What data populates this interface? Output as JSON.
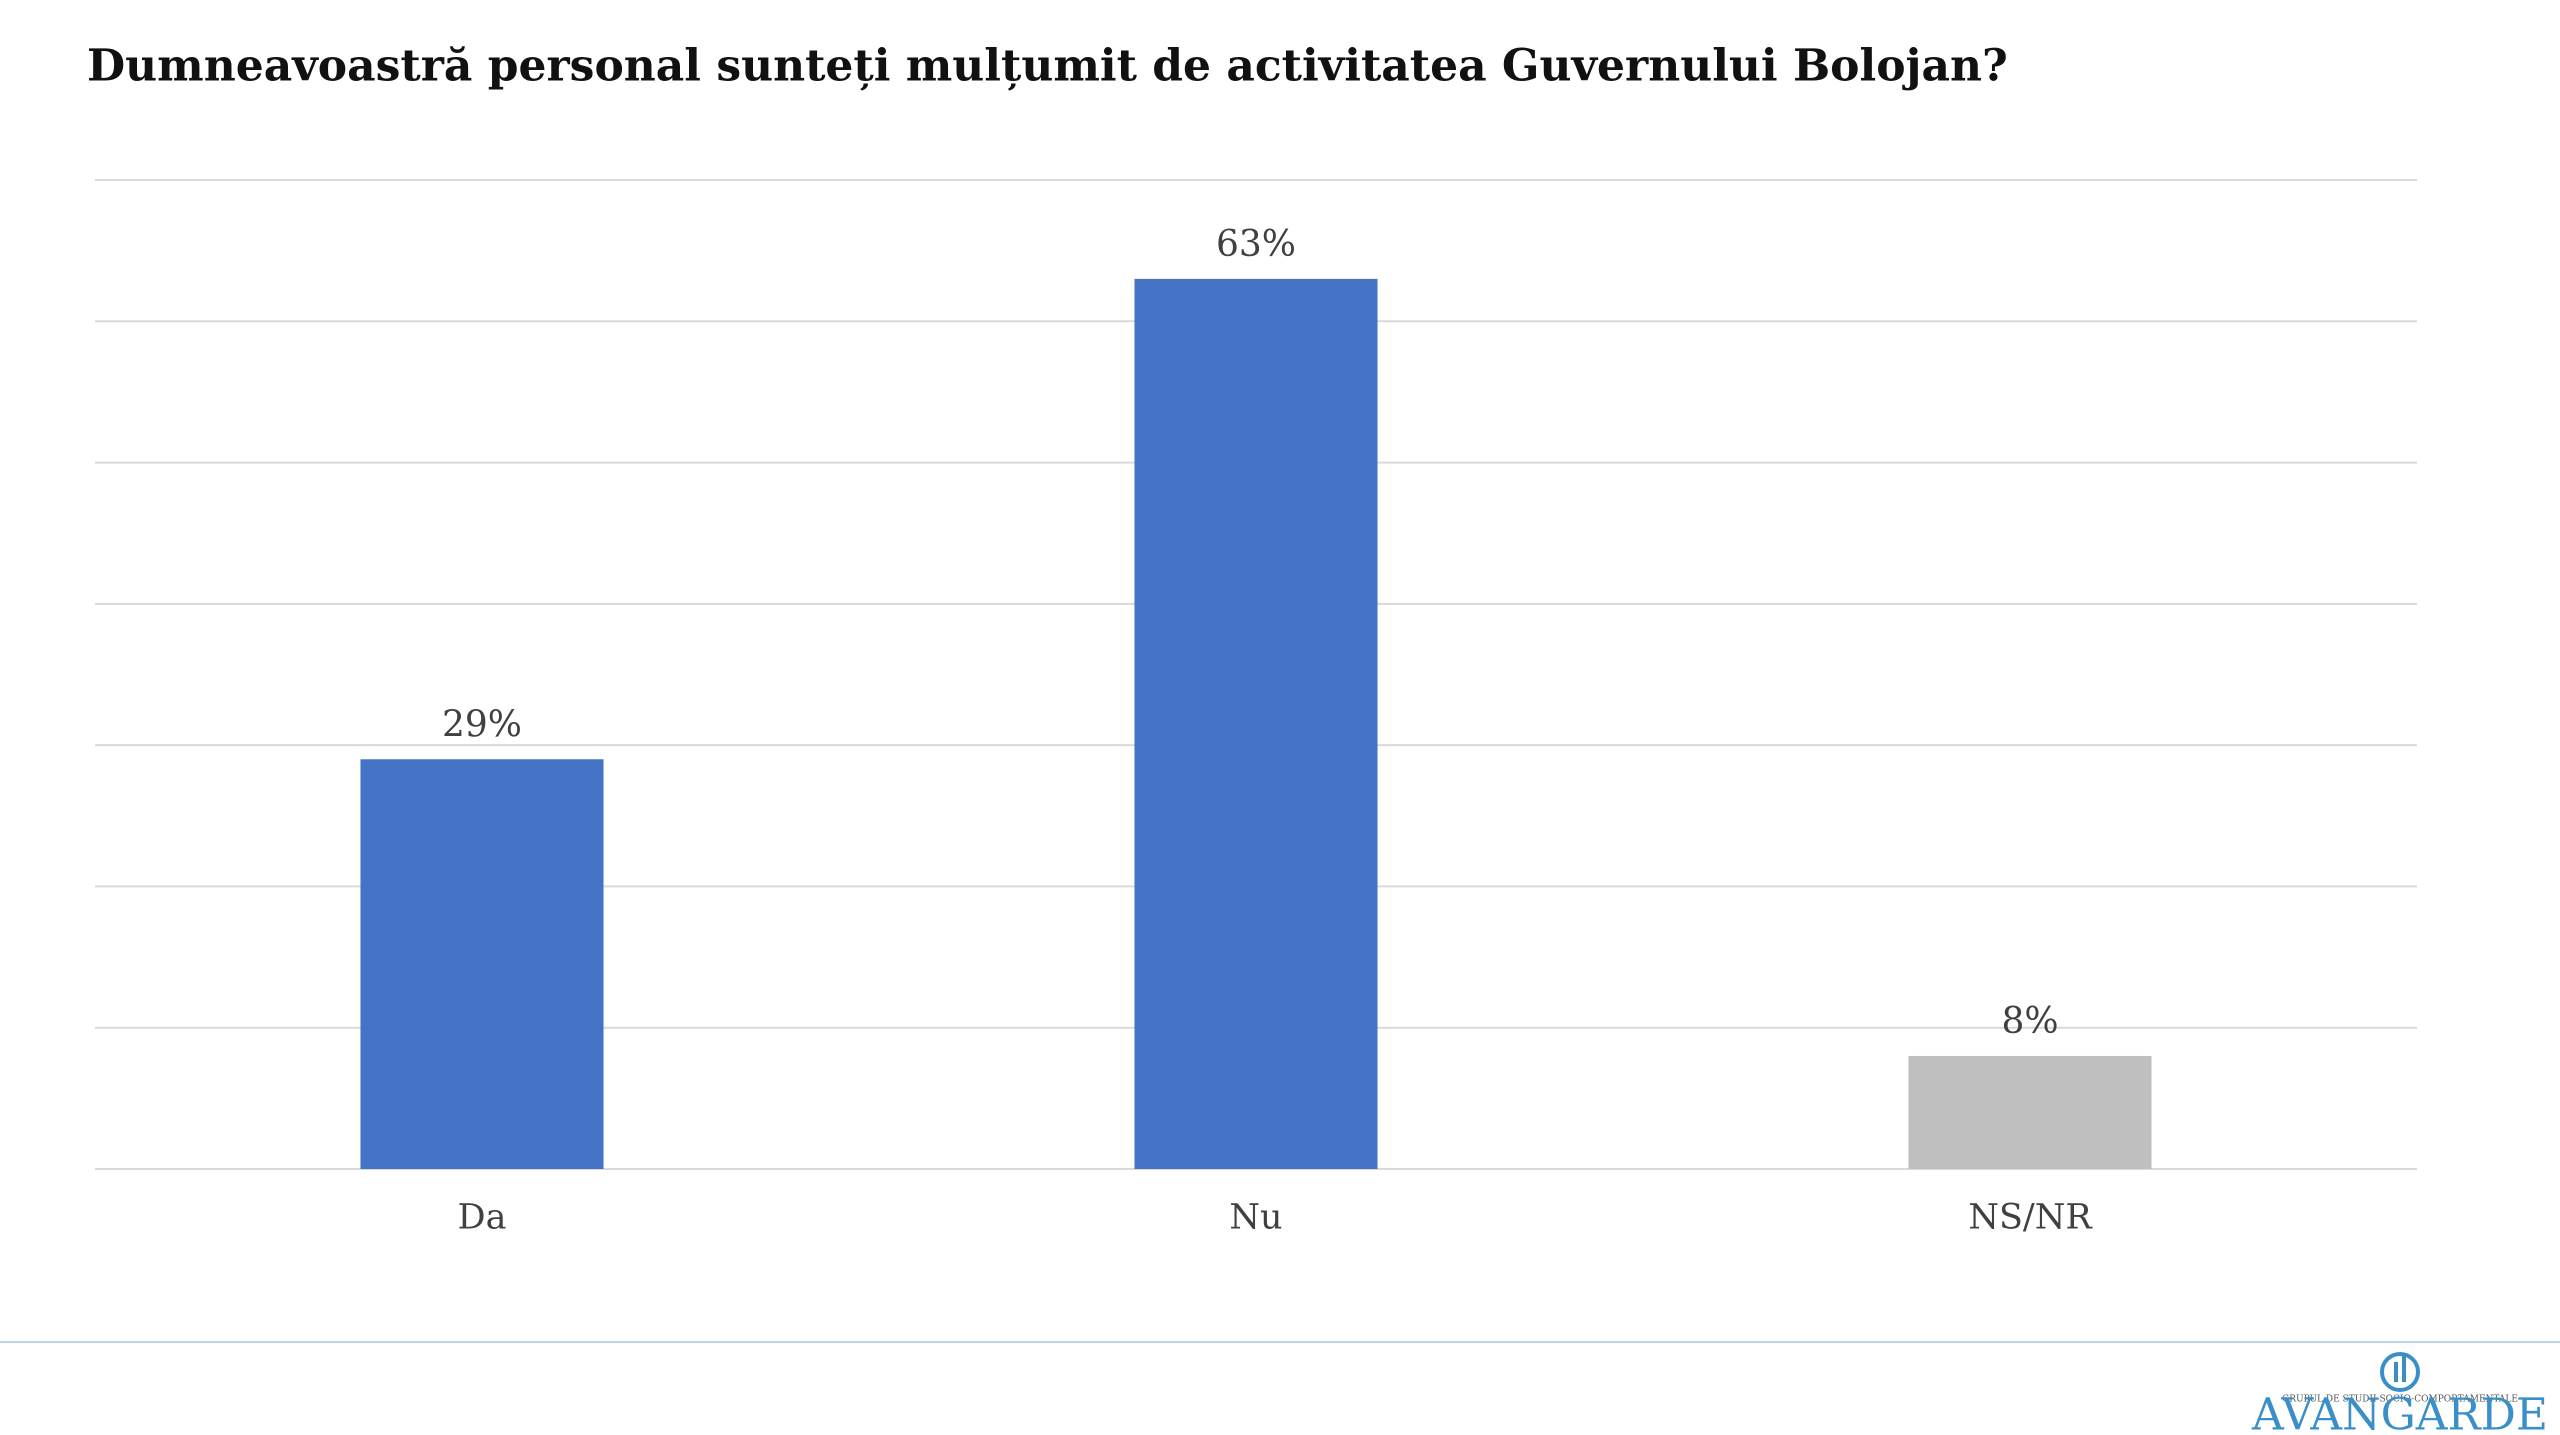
{
  "chart_data": {
    "type": "bar",
    "title": "Dumneavoastră personal sunteți mulțumit de activitatea Guvernului Bolojan?",
    "categories": [
      "Da",
      "Nu",
      "NS/NR"
    ],
    "values": [
      29,
      63,
      8
    ],
    "value_labels": [
      "29%",
      "63%",
      "8%"
    ],
    "colors": [
      "#4472c4",
      "#4472c4",
      "#bfbfbf"
    ],
    "ylim": [
      0,
      70
    ],
    "yticks": [
      0,
      10,
      20,
      30,
      40,
      50,
      60,
      70
    ],
    "grid": true
  },
  "logo": {
    "subtitle": "GRUPUL DE STUDII SOCIO-COMPORTAMENTALE",
    "name": "AVANGARDE"
  }
}
